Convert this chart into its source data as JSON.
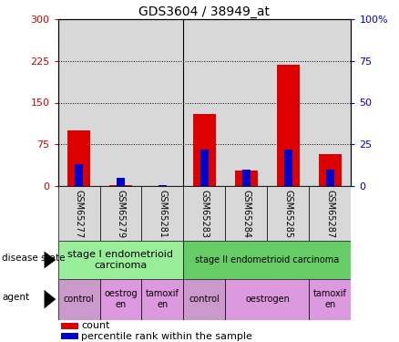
{
  "title": "GDS3604 / 38949_at",
  "samples": [
    "GSM65277",
    "GSM65279",
    "GSM65281",
    "GSM65283",
    "GSM65284",
    "GSM65285",
    "GSM65287"
  ],
  "count_values": [
    100,
    2,
    1,
    130,
    28,
    218,
    58
  ],
  "percentile_values": [
    13,
    5,
    1,
    22,
    10,
    22,
    10
  ],
  "ylim_left": [
    0,
    300
  ],
  "ylim_right": [
    0,
    100
  ],
  "yticks_left": [
    0,
    75,
    150,
    225,
    300
  ],
  "yticks_right": [
    0,
    25,
    50,
    75,
    100
  ],
  "count_bar_width": 0.55,
  "pct_bar_width": 0.18,
  "count_color": "#dd0000",
  "percentile_color": "#0000cc",
  "plot_bg": "#d8d8d8",
  "annotation_bg_stage1": "#99ee99",
  "annotation_bg_stage2": "#66cc66",
  "annotation_bg_ctrl": "#cc99cc",
  "annotation_bg_other": "#dd99dd",
  "disease_state_groups": [
    {
      "label": "stage I endometrioid\ncarcinoma",
      "start": 0,
      "end": 3
    },
    {
      "label": "stage II endometrioid carcinoma",
      "start": 3,
      "end": 7
    }
  ],
  "agent_groups": [
    {
      "label": "control",
      "start": 0,
      "end": 1
    },
    {
      "label": "oestrog\nen",
      "start": 1,
      "end": 2
    },
    {
      "label": "tamoxif\nen",
      "start": 2,
      "end": 3
    },
    {
      "label": "control",
      "start": 3,
      "end": 4
    },
    {
      "label": "oestrogen",
      "start": 4,
      "end": 6
    },
    {
      "label": "tamoxif\nen",
      "start": 6,
      "end": 7
    }
  ],
  "legend_count_label": "count",
  "legend_pct_label": "percentile rank within the sample",
  "left_axis_color": "#cc0000",
  "right_axis_color": "#0000cc",
  "divider_positions": [
    3
  ]
}
